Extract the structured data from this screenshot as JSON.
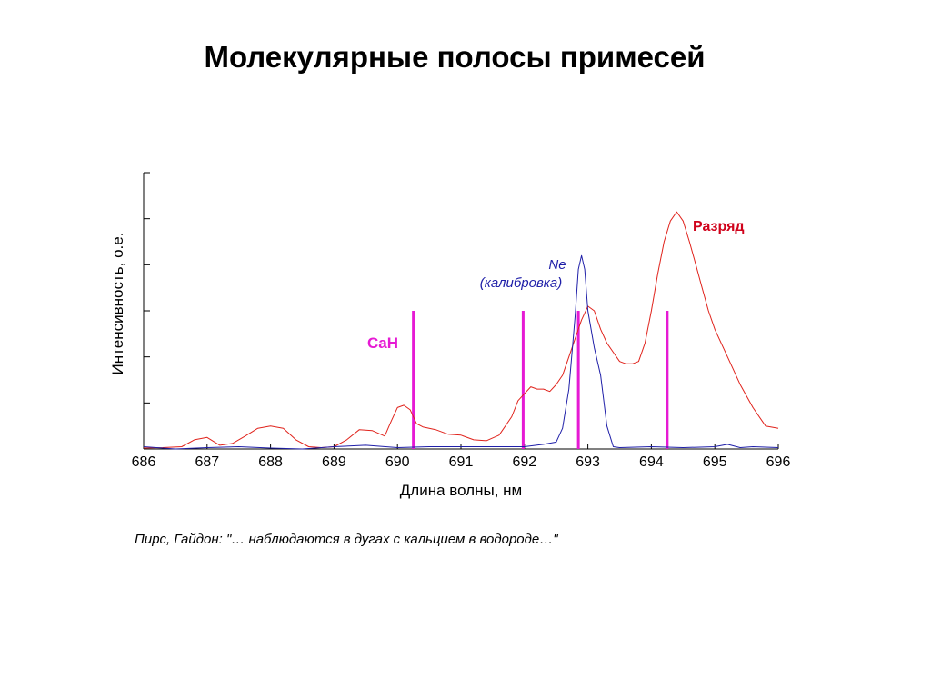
{
  "slide": {
    "title": "Молекулярные полосы примесей",
    "citation": "Пирс, Гайдон: \"… наблюдаются в дугах с кальцием в водороде…\""
  },
  "chart_data": {
    "type": "line",
    "xlabel": "Длина волны, нм",
    "ylabel": "Интенсивность, о.е.",
    "xlim": [
      686,
      696
    ],
    "ylim": [
      0,
      6
    ],
    "x_ticks": [
      686,
      687,
      688,
      689,
      690,
      691,
      692,
      693,
      694,
      695,
      696
    ],
    "x_tick_labels": [
      "686",
      "687",
      "688",
      "689",
      "690",
      "691",
      "692",
      "693",
      "694",
      "695",
      "696"
    ],
    "y_ticks": [
      0,
      1,
      2,
      3,
      4,
      5,
      6
    ],
    "y_tick_labels_shown": false,
    "grid": false,
    "series": [
      {
        "name": "Разряд",
        "color": "#e0231c",
        "label_color": "#d0021b",
        "x": [
          686.0,
          686.3,
          686.6,
          686.8,
          687.0,
          687.2,
          687.4,
          687.6,
          687.8,
          688.0,
          688.2,
          688.4,
          688.6,
          688.8,
          689.0,
          689.2,
          689.4,
          689.6,
          689.8,
          689.9,
          690.0,
          690.1,
          690.2,
          690.3,
          690.4,
          690.5,
          690.6,
          690.8,
          691.0,
          691.2,
          691.4,
          691.6,
          691.8,
          691.9,
          692.0,
          692.1,
          692.2,
          692.3,
          692.4,
          692.5,
          692.6,
          692.7,
          692.8,
          692.9,
          693.0,
          693.1,
          693.2,
          693.3,
          693.4,
          693.5,
          693.6,
          693.7,
          693.8,
          693.9,
          694.0,
          694.1,
          694.2,
          694.3,
          694.4,
          694.5,
          694.6,
          694.7,
          694.8,
          694.9,
          695.0,
          695.2,
          695.4,
          695.6,
          695.8,
          696.0
        ],
        "y": [
          0.02,
          0.03,
          0.05,
          0.2,
          0.25,
          0.08,
          0.12,
          0.28,
          0.45,
          0.5,
          0.45,
          0.2,
          0.05,
          0.03,
          0.05,
          0.2,
          0.42,
          0.4,
          0.28,
          0.6,
          0.9,
          0.95,
          0.85,
          0.55,
          0.48,
          0.45,
          0.42,
          0.32,
          0.3,
          0.2,
          0.18,
          0.3,
          0.7,
          1.05,
          1.2,
          1.35,
          1.3,
          1.3,
          1.25,
          1.4,
          1.6,
          2.0,
          2.4,
          2.8,
          3.1,
          3.0,
          2.6,
          2.3,
          2.1,
          1.9,
          1.85,
          1.85,
          1.9,
          2.3,
          3.0,
          3.8,
          4.5,
          4.95,
          5.15,
          4.95,
          4.5,
          4.0,
          3.5,
          3.0,
          2.6,
          2.0,
          1.4,
          0.9,
          0.5,
          0.45
        ]
      },
      {
        "name": "Ne\n(калибровка)",
        "color": "#1f1fa8",
        "x": [
          686.0,
          686.5,
          687.0,
          687.5,
          688.0,
          688.5,
          689.0,
          689.5,
          690.0,
          690.5,
          691.0,
          691.5,
          692.0,
          692.3,
          692.5,
          692.6,
          692.7,
          692.8,
          692.85,
          692.9,
          692.95,
          693.0,
          693.1,
          693.2,
          693.3,
          693.4,
          693.5,
          694.0,
          694.5,
          695.0,
          695.2,
          695.4,
          695.6,
          696.0
        ],
        "y": [
          0.05,
          0.0,
          0.03,
          0.05,
          0.02,
          0.0,
          0.05,
          0.08,
          0.03,
          0.05,
          0.05,
          0.05,
          0.05,
          0.1,
          0.15,
          0.45,
          1.3,
          2.9,
          3.9,
          4.2,
          3.9,
          3.0,
          2.2,
          1.6,
          0.5,
          0.05,
          0.03,
          0.05,
          0.03,
          0.05,
          0.1,
          0.03,
          0.05,
          0.03
        ]
      }
    ],
    "markers": {
      "name": "CaH",
      "color": "#e61ad4",
      "positions": [
        690.25,
        691.98,
        692.85,
        694.25
      ],
      "height": 3.0
    }
  }
}
